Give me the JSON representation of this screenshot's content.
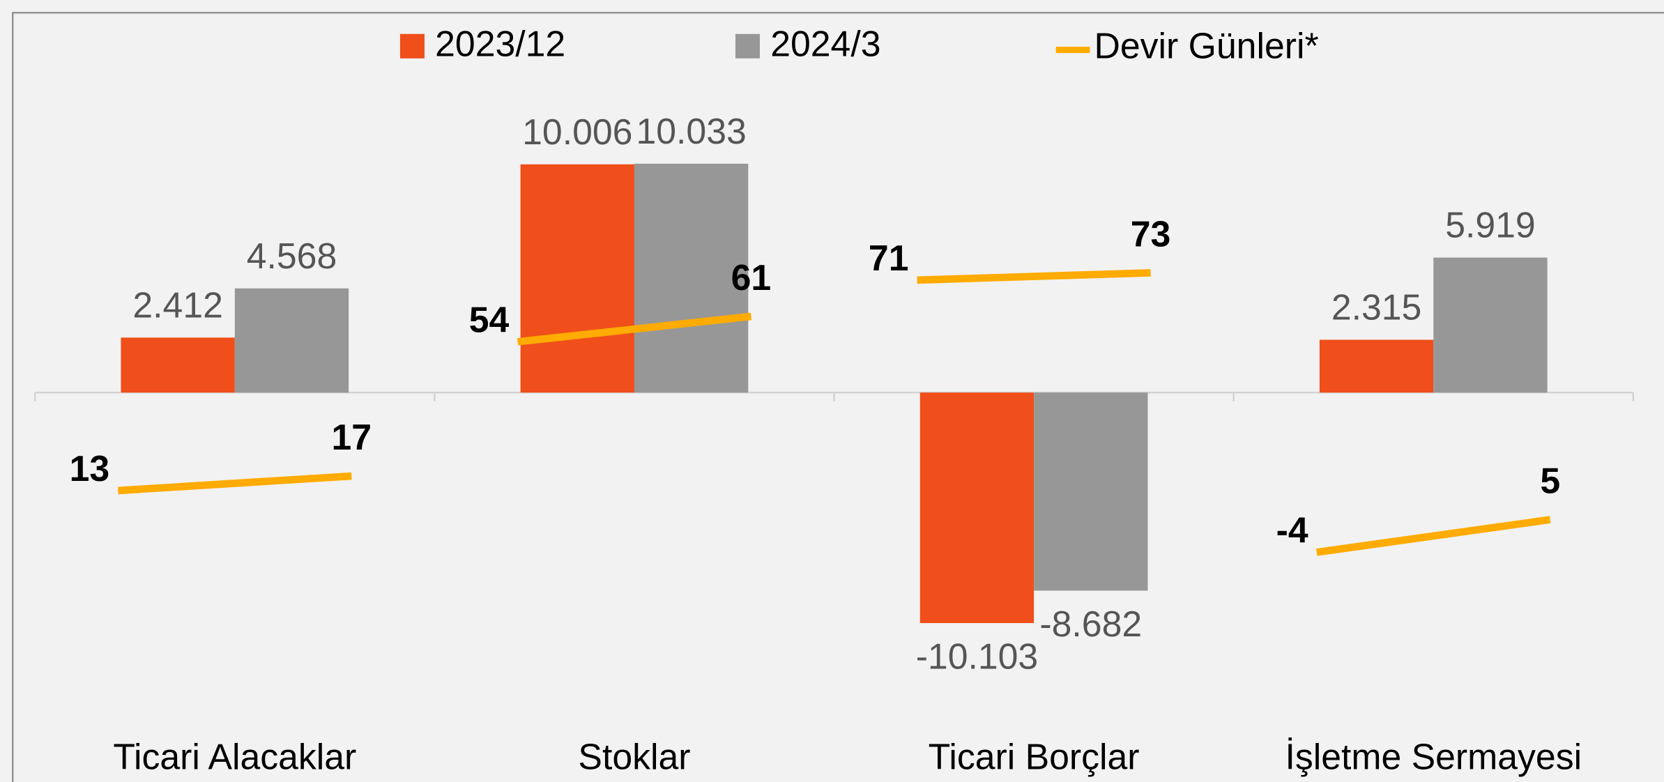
{
  "chart_data": {
    "type": "bar",
    "categories": [
      "Ticari Alacaklar",
      "Stoklar",
      "Ticari Borçlar",
      "İşletme Sermayesi"
    ],
    "series": [
      {
        "name": "2023/12",
        "color": "#f04e1a",
        "values": [
          2412,
          10006,
          -10103,
          2315
        ],
        "value_labels": [
          "2.412",
          "10.006",
          "-10.103",
          "2.315"
        ]
      },
      {
        "name": "2024/3",
        "color": "#979797",
        "values": [
          4568,
          10033,
          -8682,
          5919
        ],
        "value_labels": [
          "4.568",
          "10.033",
          "-8.682",
          "5.919"
        ]
      },
      {
        "name": "Devir Günleri*",
        "color": "#ffab00",
        "type": "line",
        "axis": "y2",
        "values": [
          [
            13,
            17
          ],
          [
            54,
            61
          ],
          [
            71,
            73
          ],
          [
            -4,
            5
          ]
        ]
      }
    ],
    "ylim": [
      -14000,
      14000
    ],
    "y2lim": [
      -48,
      128
    ],
    "legend": "top"
  }
}
